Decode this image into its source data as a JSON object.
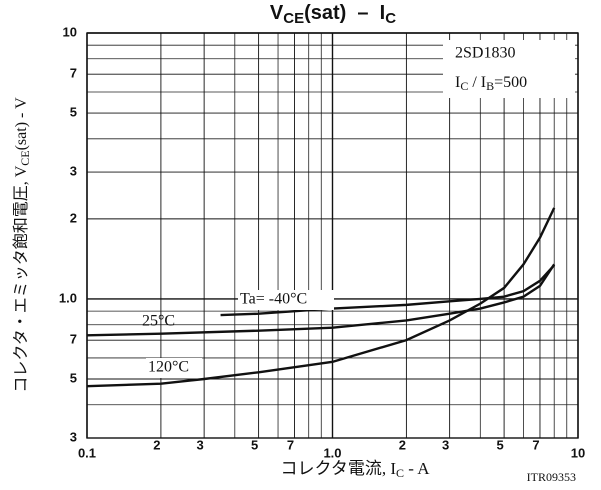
{
  "chart_data": {
    "type": "line",
    "title_parts": [
      "V",
      "CE",
      "(sat)  –  I",
      "C"
    ],
    "xlabel_parts": [
      "コレクタ電流, I",
      "C",
      " - A"
    ],
    "ylabel_parts": [
      "コレクタ・エミッタ飽和電圧, V",
      "CE",
      "(sat) - V"
    ],
    "box_text": [
      "2SD1830"
    ],
    "box_parts": [
      "I",
      "C",
      " / I",
      "B",
      "=500"
    ],
    "code": "ITR09353",
    "log_x": true,
    "log_y": true,
    "grid": true,
    "xlim": [
      0.1,
      10
    ],
    "ylim": [
      0.3,
      10
    ],
    "xticks": [
      0.1,
      {
        "value": 0.2,
        "label": "2"
      },
      {
        "value": 0.3,
        "label": "3"
      },
      {
        "value": 0.5,
        "label": "5"
      },
      {
        "value": 0.7,
        "label": "7"
      },
      {
        "value": 1,
        "label": "1.0"
      },
      2,
      3,
      5,
      7,
      10
    ],
    "yticks": [
      {
        "value": 0.3,
        "label": "3"
      },
      {
        "value": 0.5,
        "label": "5"
      },
      {
        "value": 0.7,
        "label": "7"
      },
      {
        "value": 1,
        "label": "1.0"
      },
      2,
      3,
      5,
      7,
      10
    ],
    "xminor": [
      0.4,
      0.6,
      0.8,
      0.9,
      4,
      6,
      8,
      9
    ],
    "yminor": [
      0.4,
      0.6,
      0.8,
      0.9,
      4,
      6,
      8,
      9
    ],
    "series": [
      {
        "name": "Ta= -40°C",
        "color": "#111111",
        "x": [
          0.35,
          0.5,
          1,
          2,
          3,
          4,
          5,
          6,
          7,
          8
        ],
        "values": [
          0.87,
          0.88,
          0.92,
          0.95,
          0.98,
          1.0,
          1.02,
          1.07,
          1.17,
          1.34
        ]
      },
      {
        "name": "25°C",
        "color": "#111111",
        "x": [
          0.1,
          0.2,
          0.5,
          1,
          2,
          3,
          4,
          5,
          6,
          7,
          8
        ],
        "values": [
          0.73,
          0.74,
          0.76,
          0.78,
          0.83,
          0.88,
          0.92,
          0.97,
          1.02,
          1.12,
          1.35
        ]
      },
      {
        "name": "120°C",
        "color": "#111111",
        "x": [
          0.1,
          0.2,
          0.3,
          0.5,
          1,
          2,
          3,
          4,
          5,
          6,
          7,
          8
        ],
        "values": [
          0.47,
          0.48,
          0.5,
          0.53,
          0.58,
          0.7,
          0.83,
          0.96,
          1.1,
          1.35,
          1.7,
          2.2
        ]
      }
    ]
  }
}
